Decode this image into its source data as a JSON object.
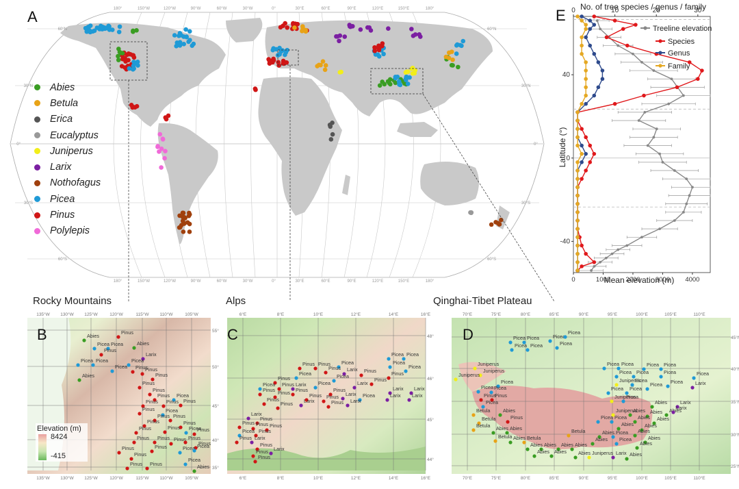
{
  "panels": {
    "A": "A",
    "B": "B",
    "C": "C",
    "D": "D",
    "E": "E"
  },
  "legend": [
    {
      "name": "Abies",
      "color": "#3a9d23"
    },
    {
      "name": "Betula",
      "color": "#e8a317"
    },
    {
      "name": "Erica",
      "color": "#555555"
    },
    {
      "name": "Eucalyptus",
      "color": "#999999"
    },
    {
      "name": "Juniperus",
      "color": "#f2ee1a"
    },
    {
      "name": "Larix",
      "color": "#7b1fa2"
    },
    {
      "name": "Nothofagus",
      "color": "#a0400d"
    },
    {
      "name": "Picea",
      "color": "#1f9ad6"
    },
    {
      "name": "Pinus",
      "color": "#d01616"
    },
    {
      "name": "Polylepis",
      "color": "#f06ad8"
    }
  ],
  "world_map": {
    "top_lon_labels": [
      "180°",
      "150°W",
      "120°W",
      "90°W",
      "60°W",
      "30°W",
      "0°",
      "30°E",
      "60°E",
      "90°E",
      "120°E",
      "150°E",
      "180°"
    ],
    "bottom_lon_labels": [
      "180°",
      "150°W",
      "120°W",
      "90°W",
      "60°W",
      "30°W",
      "0°",
      "30°E",
      "60°E",
      "90°E",
      "120°E",
      "150°E",
      "180°"
    ],
    "lat_labels_left": [
      "60°N",
      "30°N",
      "0°",
      "30°S",
      "60°S"
    ],
    "lat_labels_right": [
      "60°N",
      "30°N",
      "0°",
      "30°S",
      "60°S"
    ]
  },
  "regions": {
    "rocky": {
      "title": "Rocky Mountains",
      "lon_labels": [
        "135°W",
        "130°W",
        "125°W",
        "120°W",
        "115°W",
        "110°W",
        "105°W"
      ],
      "lat_labels": [
        "55°N",
        "50°N",
        "45°N",
        "40°N",
        "35°N"
      ],
      "elevation_title": "Elevation (m)",
      "elev_max": "8424",
      "elev_min": "-415"
    },
    "alps": {
      "title": "Alps",
      "lon_labels": [
        "6°E",
        "8°E",
        "10°E",
        "12°E",
        "14°E",
        "16°E"
      ],
      "lat_labels": [
        "48°N",
        "46°N",
        "45°N",
        "44°N"
      ]
    },
    "qinghai": {
      "title": "Qinghai-Tibet Plateau",
      "lon_labels": [
        "70°E",
        "75°E",
        "80°E",
        "85°E",
        "90°E",
        "95°E",
        "100°E",
        "105°E",
        "110°E"
      ],
      "lat_labels": [
        "45°N",
        "40°N",
        "35°N",
        "30°N",
        "25°N"
      ]
    }
  },
  "chart_data": {
    "type": "line",
    "top_axis_label": "No. of tree species / genus / family",
    "xlabel": "Mean elevation (m)",
    "ylabel": "Latitude (°)",
    "top_ticks": [
      0,
      10,
      20,
      30
    ],
    "bottom_ticks": [
      0,
      1000,
      2000,
      3000,
      4000
    ],
    "y_ticks": [
      -40,
      0,
      40
    ],
    "ylim": [
      -55,
      68
    ],
    "dashed_lines": [
      66.5,
      23.5,
      -23.5
    ],
    "solid_line": 0,
    "legend_position": "top-right",
    "series": [
      {
        "name": "Treeline elevation",
        "color": "#888888",
        "x_axis": "bottom",
        "points": [
          [
            600,
            -54
          ],
          [
            700,
            -52
          ],
          [
            900,
            -50
          ],
          [
            1100,
            -48
          ],
          [
            1300,
            -46
          ],
          [
            1500,
            -44
          ],
          [
            1800,
            -42
          ],
          [
            2300,
            -38
          ],
          [
            2900,
            -34
          ],
          [
            3400,
            -30
          ],
          [
            3700,
            -26
          ],
          [
            3800,
            -22
          ],
          [
            3900,
            -18
          ],
          [
            4000,
            -14
          ],
          [
            3800,
            -10
          ],
          [
            3400,
            -6
          ],
          [
            3000,
            -2
          ],
          [
            2900,
            2
          ],
          [
            2500,
            6
          ],
          [
            2700,
            10
          ],
          [
            2800,
            14
          ],
          [
            2200,
            18
          ],
          [
            2400,
            22
          ],
          [
            3200,
            26
          ],
          [
            3700,
            30
          ],
          [
            3500,
            34
          ],
          [
            3300,
            38
          ],
          [
            2700,
            42
          ],
          [
            2300,
            46
          ],
          [
            2000,
            50
          ],
          [
            1500,
            54
          ],
          [
            1200,
            58
          ],
          [
            900,
            62
          ],
          [
            800,
            66
          ]
        ],
        "err": [
          400,
          400,
          400,
          400,
          400,
          400,
          500,
          500,
          600,
          600,
          600,
          700,
          700,
          700,
          800,
          800,
          800,
          800,
          800,
          800,
          800,
          900,
          900,
          900,
          900,
          900,
          800,
          800,
          700,
          600,
          500,
          400,
          400,
          400
        ]
      },
      {
        "name": "Species",
        "color": "#e0181b",
        "x_axis": "top",
        "points": [
          [
            1,
            -54
          ],
          [
            2,
            -52
          ],
          [
            5,
            -50
          ],
          [
            3,
            -46
          ],
          [
            2,
            -42
          ],
          [
            1.5,
            -38
          ],
          [
            1,
            -34
          ],
          [
            1,
            -30
          ],
          [
            1,
            -26
          ],
          [
            1,
            -22
          ],
          [
            1,
            -18
          ],
          [
            1,
            -14
          ],
          [
            2,
            -10
          ],
          [
            3,
            -6
          ],
          [
            4,
            -2
          ],
          [
            5,
            2
          ],
          [
            4,
            6
          ],
          [
            3,
            10
          ],
          [
            2,
            14
          ],
          [
            1,
            18
          ],
          [
            1,
            22
          ],
          [
            10,
            26
          ],
          [
            17,
            30
          ],
          [
            25,
            34
          ],
          [
            30,
            38
          ],
          [
            31,
            42
          ],
          [
            28,
            46
          ],
          [
            20,
            50
          ],
          [
            13,
            54
          ],
          [
            8,
            58
          ],
          [
            12,
            62
          ],
          [
            15,
            64
          ],
          [
            10,
            66
          ],
          [
            5,
            68
          ]
        ]
      },
      {
        "name": "Genus",
        "color": "#2e4a8c",
        "x_axis": "top",
        "points": [
          [
            1,
            -54
          ],
          [
            1,
            -50
          ],
          [
            1,
            -46
          ],
          [
            1,
            -42
          ],
          [
            1,
            -38
          ],
          [
            1,
            -34
          ],
          [
            1,
            -30
          ],
          [
            1,
            -26
          ],
          [
            1,
            -22
          ],
          [
            1,
            -18
          ],
          [
            1,
            -14
          ],
          [
            1,
            -10
          ],
          [
            1,
            -6
          ],
          [
            2,
            -2
          ],
          [
            3,
            2
          ],
          [
            2,
            6
          ],
          [
            1,
            10
          ],
          [
            1,
            14
          ],
          [
            1,
            18
          ],
          [
            1,
            22
          ],
          [
            3,
            26
          ],
          [
            5,
            30
          ],
          [
            6,
            34
          ],
          [
            7,
            38
          ],
          [
            7,
            42
          ],
          [
            6,
            46
          ],
          [
            5,
            50
          ],
          [
            4,
            54
          ],
          [
            3,
            58
          ],
          [
            4,
            62
          ],
          [
            5,
            64
          ],
          [
            4,
            66
          ],
          [
            2,
            68
          ]
        ]
      },
      {
        "name": "Family",
        "color": "#e5a823",
        "x_axis": "top",
        "points": [
          [
            1,
            -54
          ],
          [
            1,
            -50
          ],
          [
            1,
            -46
          ],
          [
            1,
            -42
          ],
          [
            1,
            -38
          ],
          [
            1,
            -34
          ],
          [
            1,
            -30
          ],
          [
            1,
            -26
          ],
          [
            1,
            -22
          ],
          [
            1,
            -18
          ],
          [
            1,
            -14
          ],
          [
            1,
            -10
          ],
          [
            1,
            -6
          ],
          [
            1,
            -2
          ],
          [
            2,
            2
          ],
          [
            1,
            6
          ],
          [
            1,
            10
          ],
          [
            1,
            14
          ],
          [
            1,
            18
          ],
          [
            1,
            22
          ],
          [
            2,
            26
          ],
          [
            3,
            30
          ],
          [
            3,
            34
          ],
          [
            3,
            38
          ],
          [
            3,
            42
          ],
          [
            3,
            46
          ],
          [
            2,
            50
          ],
          [
            2,
            54
          ],
          [
            2,
            58
          ],
          [
            3,
            62
          ],
          [
            3,
            64
          ],
          [
            2,
            66
          ],
          [
            1,
            68
          ]
        ]
      }
    ]
  }
}
